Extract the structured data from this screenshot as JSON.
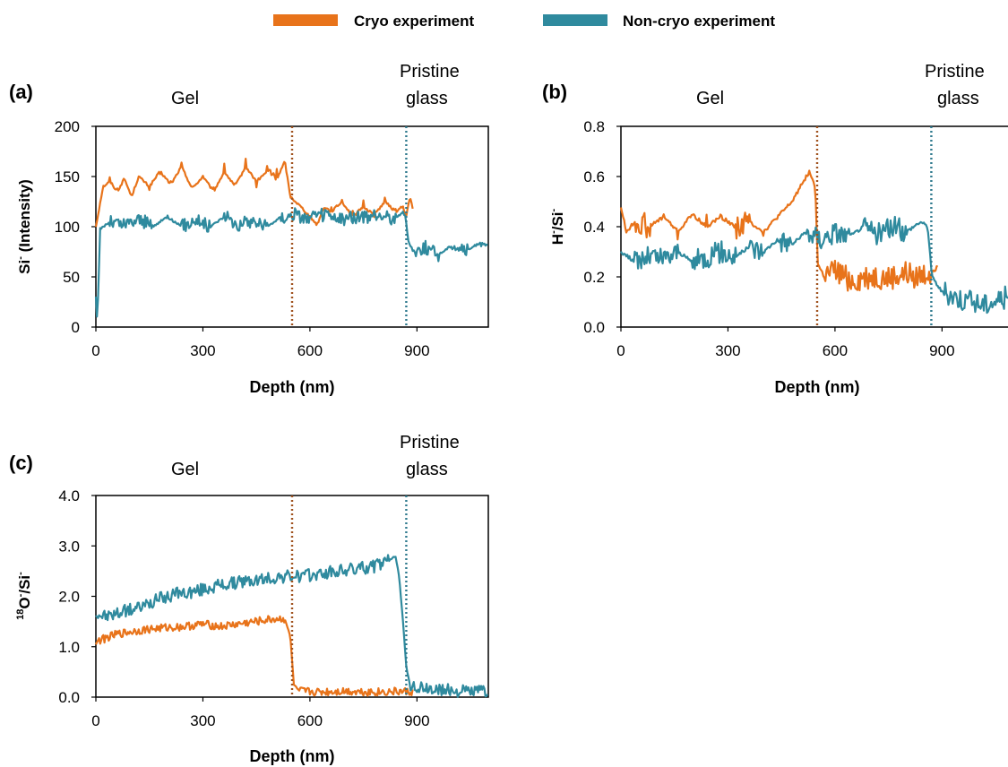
{
  "legend": {
    "placement": "top-center",
    "items": [
      {
        "label": "Cryo experiment",
        "color": "#E8731A"
      },
      {
        "label": "Non-cryo experiment",
        "color": "#2F8A9E"
      }
    ]
  },
  "regions": {
    "gel": "Gel",
    "pristine_line1": "Pristine",
    "pristine_line2": "glass"
  },
  "markers": {
    "cryo_boundary_nm": 550,
    "noncryo_boundary_nm": 870,
    "cryo_color": "#A0521E",
    "noncryo_color": "#2F7A8E"
  },
  "chart_data": [
    {
      "panel": "(a)",
      "type": "line",
      "xlabel": "Depth (nm)",
      "ylabel": "Si- (Intensity)",
      "ylabel_main": "Si",
      "ylabel_sup": "-",
      "ylabel_rest": " (Intensity)",
      "xlim": [
        0,
        1100
      ],
      "ylim": [
        0,
        200
      ],
      "xticks": [
        0,
        300,
        600,
        900
      ],
      "yticks": [
        0,
        50,
        100,
        150,
        200
      ],
      "ytick_labels": [
        "0",
        "50",
        "100",
        "150",
        "200"
      ],
      "series": [
        {
          "name": "Cryo experiment",
          "color": "#E8731A",
          "points": [
            [
              0,
              100
            ],
            [
              10,
              120
            ],
            [
              20,
              140
            ],
            [
              40,
              145
            ],
            [
              60,
              135
            ],
            [
              80,
              148
            ],
            [
              100,
              130
            ],
            [
              120,
              150
            ],
            [
              150,
              140
            ],
            [
              180,
              155
            ],
            [
              210,
              142
            ],
            [
              240,
              160
            ],
            [
              270,
              138
            ],
            [
              300,
              150
            ],
            [
              330,
              135
            ],
            [
              360,
              155
            ],
            [
              390,
              140
            ],
            [
              420,
              160
            ],
            [
              450,
              145
            ],
            [
              480,
              155
            ],
            [
              510,
              150
            ],
            [
              530,
              165
            ],
            [
              545,
              130
            ],
            [
              560,
              125
            ],
            [
              580,
              118
            ],
            [
              600,
              110
            ],
            [
              620,
              102
            ],
            [
              640,
              120
            ],
            [
              660,
              115
            ],
            [
              690,
              125
            ],
            [
              720,
              110
            ],
            [
              750,
              120
            ],
            [
              780,
              112
            ],
            [
              810,
              125
            ],
            [
              840,
              115
            ],
            [
              860,
              120
            ],
            [
              870,
              110
            ],
            [
              880,
              130
            ],
            [
              890,
              115
            ]
          ],
          "noise": 8
        },
        {
          "name": "Non-cryo experiment",
          "color": "#2F8A9E",
          "points": [
            [
              0,
              30
            ],
            [
              4,
              5
            ],
            [
              8,
              50
            ],
            [
              12,
              98
            ],
            [
              20,
              100
            ],
            [
              40,
              105
            ],
            [
              80,
              102
            ],
            [
              120,
              108
            ],
            [
              160,
              100
            ],
            [
              200,
              110
            ],
            [
              240,
              100
            ],
            [
              280,
              108
            ],
            [
              320,
              100
            ],
            [
              360,
              110
            ],
            [
              400,
              102
            ],
            [
              440,
              106
            ],
            [
              480,
              100
            ],
            [
              520,
              110
            ],
            [
              560,
              112
            ],
            [
              600,
              108
            ],
            [
              640,
              112
            ],
            [
              680,
              106
            ],
            [
              720,
              110
            ],
            [
              760,
              108
            ],
            [
              800,
              112
            ],
            [
              840,
              108
            ],
            [
              860,
              115
            ],
            [
              868,
              110
            ],
            [
              876,
              85
            ],
            [
              890,
              75
            ],
            [
              920,
              80
            ],
            [
              960,
              72
            ],
            [
              1000,
              82
            ],
            [
              1040,
              76
            ],
            [
              1080,
              85
            ],
            [
              1100,
              80
            ]
          ],
          "noise": 7
        }
      ]
    },
    {
      "panel": "(b)",
      "type": "line",
      "xlabel": "Depth (nm)",
      "ylabel": "H-/Si-",
      "ylabel_main": "H",
      "ylabel_sup": "-",
      "ylabel_rest": "/Si",
      "ylabel_sup2": "-",
      "xlim": [
        0,
        1100
      ],
      "ylim": [
        0,
        0.8
      ],
      "xticks": [
        0,
        300,
        600,
        900
      ],
      "yticks": [
        0,
        0.2,
        0.4,
        0.6,
        0.8
      ],
      "ytick_labels": [
        "0.0",
        "0.2",
        "0.4",
        "0.6",
        "0.8"
      ],
      "series": [
        {
          "name": "Cryo experiment",
          "color": "#E8731A",
          "points": [
            [
              0,
              0.48
            ],
            [
              15,
              0.38
            ],
            [
              40,
              0.42
            ],
            [
              80,
              0.4
            ],
            [
              120,
              0.44
            ],
            [
              160,
              0.38
            ],
            [
              200,
              0.45
            ],
            [
              240,
              0.4
            ],
            [
              280,
              0.44
            ],
            [
              320,
              0.4
            ],
            [
              360,
              0.42
            ],
            [
              400,
              0.38
            ],
            [
              440,
              0.44
            ],
            [
              480,
              0.5
            ],
            [
              510,
              0.58
            ],
            [
              530,
              0.62
            ],
            [
              545,
              0.55
            ],
            [
              552,
              0.25
            ],
            [
              570,
              0.2
            ],
            [
              600,
              0.22
            ],
            [
              650,
              0.18
            ],
            [
              700,
              0.2
            ],
            [
              750,
              0.19
            ],
            [
              800,
              0.21
            ],
            [
              840,
              0.2
            ],
            [
              870,
              0.22
            ],
            [
              890,
              0.24
            ]
          ],
          "noise": 0.05
        },
        {
          "name": "Non-cryo experiment",
          "color": "#2F8A9E",
          "points": [
            [
              0,
              0.3
            ],
            [
              40,
              0.26
            ],
            [
              80,
              0.28
            ],
            [
              120,
              0.27
            ],
            [
              160,
              0.3
            ],
            [
              200,
              0.26
            ],
            [
              240,
              0.28
            ],
            [
              280,
              0.3
            ],
            [
              320,
              0.28
            ],
            [
              360,
              0.32
            ],
            [
              400,
              0.3
            ],
            [
              440,
              0.35
            ],
            [
              480,
              0.33
            ],
            [
              520,
              0.38
            ],
            [
              560,
              0.35
            ],
            [
              600,
              0.38
            ],
            [
              640,
              0.36
            ],
            [
              680,
              0.4
            ],
            [
              720,
              0.37
            ],
            [
              760,
              0.4
            ],
            [
              800,
              0.38
            ],
            [
              840,
              0.42
            ],
            [
              860,
              0.4
            ],
            [
              872,
              0.2
            ],
            [
              900,
              0.14
            ],
            [
              940,
              0.12
            ],
            [
              980,
              0.1
            ],
            [
              1020,
              0.09
            ],
            [
              1060,
              0.11
            ],
            [
              1100,
              0.13
            ]
          ],
          "noise": 0.045
        }
      ]
    },
    {
      "panel": "(c)",
      "type": "line",
      "xlabel": "Depth (nm)",
      "ylabel": "18O-/Si-",
      "ylabel_presup": "18",
      "ylabel_main": "O",
      "ylabel_sup": "-",
      "ylabel_rest": "/Si",
      "ylabel_sup2": "-",
      "xlim": [
        0,
        1100
      ],
      "ylim": [
        0,
        4.0
      ],
      "xticks": [
        0,
        300,
        600,
        900
      ],
      "yticks": [
        0,
        1,
        2,
        3,
        4
      ],
      "ytick_labels": [
        "0.0",
        "1.0",
        "2.0",
        "3.0",
        "4.0"
      ],
      "series": [
        {
          "name": "Cryo experiment",
          "color": "#E8731A",
          "points": [
            [
              0,
              1.1
            ],
            [
              20,
              1.15
            ],
            [
              60,
              1.25
            ],
            [
              100,
              1.3
            ],
            [
              150,
              1.35
            ],
            [
              200,
              1.38
            ],
            [
              250,
              1.4
            ],
            [
              300,
              1.45
            ],
            [
              350,
              1.4
            ],
            [
              400,
              1.45
            ],
            [
              450,
              1.5
            ],
            [
              500,
              1.55
            ],
            [
              530,
              1.55
            ],
            [
              545,
              1.2
            ],
            [
              555,
              0.25
            ],
            [
              570,
              0.12
            ],
            [
              620,
              0.1
            ],
            [
              700,
              0.12
            ],
            [
              780,
              0.1
            ],
            [
              850,
              0.11
            ],
            [
              890,
              0.1
            ]
          ],
          "noise": 0.08
        },
        {
          "name": "Non-cryo experiment",
          "color": "#2F8A9E",
          "points": [
            [
              0,
              1.65
            ],
            [
              30,
              1.6
            ],
            [
              80,
              1.7
            ],
            [
              130,
              1.8
            ],
            [
              180,
              1.95
            ],
            [
              230,
              2.05
            ],
            [
              280,
              2.1
            ],
            [
              330,
              2.2
            ],
            [
              380,
              2.25
            ],
            [
              430,
              2.3
            ],
            [
              480,
              2.35
            ],
            [
              530,
              2.4
            ],
            [
              580,
              2.4
            ],
            [
              630,
              2.45
            ],
            [
              680,
              2.5
            ],
            [
              730,
              2.55
            ],
            [
              780,
              2.6
            ],
            [
              820,
              2.7
            ],
            [
              840,
              2.8
            ],
            [
              850,
              2.4
            ],
            [
              860,
              1.6
            ],
            [
              870,
              0.6
            ],
            [
              880,
              0.25
            ],
            [
              900,
              0.18
            ],
            [
              950,
              0.15
            ],
            [
              1000,
              0.13
            ],
            [
              1050,
              0.12
            ],
            [
              1100,
              0.14
            ]
          ],
          "noise": 0.13
        }
      ]
    }
  ]
}
